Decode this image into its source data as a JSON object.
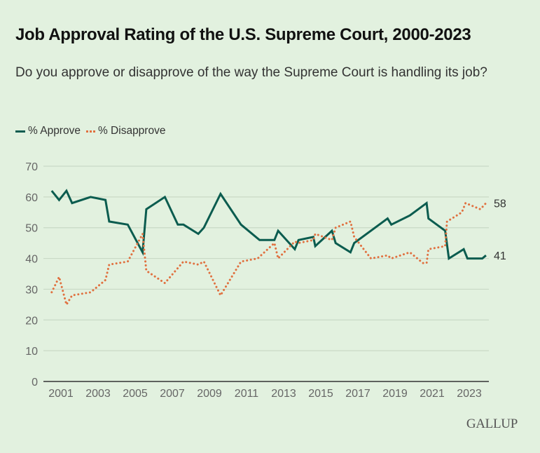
{
  "header": {
    "title": "Job Approval Rating of the U.S. Supreme Court, 2000-2023",
    "subtitle": "Do you approve or disapprove of the way the Supreme Court is handling its job?"
  },
  "legend": {
    "items": [
      {
        "label": "% Approve",
        "color": "#0b5c4f",
        "style": "solid"
      },
      {
        "label": "% Disapprove",
        "color": "#e0703f",
        "style": "dotted"
      }
    ]
  },
  "logo": "GALLUP",
  "chart_data": {
    "type": "line",
    "title": "Job Approval Rating of the U.S. Supreme Court, 2000-2023",
    "subtitle": "Do you approve or disapprove of the way the Supreme Court is handling its job?",
    "xlabel": "",
    "ylabel": "",
    "xlim": [
      2000,
      2024.2
    ],
    "ylim": [
      0,
      70
    ],
    "yticks": [
      0,
      10,
      20,
      30,
      40,
      50,
      60,
      70
    ],
    "xticks": [
      2001,
      2003,
      2005,
      2007,
      2009,
      2011,
      2013,
      2015,
      2017,
      2019,
      2021,
      2023
    ],
    "grid": true,
    "legend_position": "top-left",
    "series": [
      {
        "name": "% Approve",
        "color": "#0b5c4f",
        "style": "solid",
        "end_label": "41",
        "points": [
          [
            2000.5,
            62
          ],
          [
            2000.9,
            59
          ],
          [
            2001.3,
            62
          ],
          [
            2001.6,
            58
          ],
          [
            2002.6,
            60
          ],
          [
            2003.4,
            59
          ],
          [
            2003.6,
            52
          ],
          [
            2004.6,
            51
          ],
          [
            2005.4,
            42
          ],
          [
            2005.6,
            56
          ],
          [
            2006.6,
            60
          ],
          [
            2007.3,
            51
          ],
          [
            2007.6,
            51
          ],
          [
            2008.4,
            48
          ],
          [
            2008.7,
            50
          ],
          [
            2009.6,
            61
          ],
          [
            2010.7,
            51
          ],
          [
            2011.7,
            46
          ],
          [
            2012.5,
            46
          ],
          [
            2012.7,
            49
          ],
          [
            2013.6,
            43
          ],
          [
            2013.8,
            46
          ],
          [
            2014.6,
            47
          ],
          [
            2014.7,
            44
          ],
          [
            2015.6,
            49
          ],
          [
            2015.8,
            45
          ],
          [
            2016.6,
            42
          ],
          [
            2016.8,
            45
          ],
          [
            2018.6,
            53
          ],
          [
            2018.8,
            51
          ],
          [
            2019.8,
            54
          ],
          [
            2020.7,
            58
          ],
          [
            2020.8,
            53
          ],
          [
            2021.7,
            49
          ],
          [
            2021.9,
            40
          ],
          [
            2022.7,
            43
          ],
          [
            2022.9,
            40
          ],
          [
            2023.7,
            40
          ],
          [
            2023.9,
            41
          ]
        ]
      },
      {
        "name": "% Disapprove",
        "color": "#e0703f",
        "style": "dotted",
        "end_label": "58",
        "points": [
          [
            2000.5,
            29
          ],
          [
            2000.9,
            34
          ],
          [
            2001.3,
            25
          ],
          [
            2001.6,
            28
          ],
          [
            2002.6,
            29
          ],
          [
            2003.4,
            33
          ],
          [
            2003.6,
            38
          ],
          [
            2004.6,
            39
          ],
          [
            2005.4,
            48
          ],
          [
            2005.6,
            36
          ],
          [
            2006.6,
            32
          ],
          [
            2007.6,
            39
          ],
          [
            2008.4,
            38
          ],
          [
            2008.7,
            39
          ],
          [
            2009.6,
            28
          ],
          [
            2010.7,
            39
          ],
          [
            2011.6,
            40
          ],
          [
            2012.5,
            45
          ],
          [
            2012.7,
            40
          ],
          [
            2013.6,
            45.5
          ],
          [
            2013.8,
            45
          ],
          [
            2014.6,
            46
          ],
          [
            2014.7,
            48
          ],
          [
            2015.6,
            46
          ],
          [
            2015.8,
            50
          ],
          [
            2016.6,
            52
          ],
          [
            2016.8,
            47
          ],
          [
            2017.7,
            40
          ],
          [
            2018.6,
            41
          ],
          [
            2018.8,
            40
          ],
          [
            2019.8,
            42
          ],
          [
            2020.5,
            38.5
          ],
          [
            2020.7,
            38.5
          ],
          [
            2020.8,
            43
          ],
          [
            2021.7,
            44
          ],
          [
            2021.8,
            52
          ],
          [
            2022.6,
            55
          ],
          [
            2022.8,
            58
          ],
          [
            2023.6,
            56
          ],
          [
            2023.9,
            58
          ]
        ]
      }
    ]
  }
}
